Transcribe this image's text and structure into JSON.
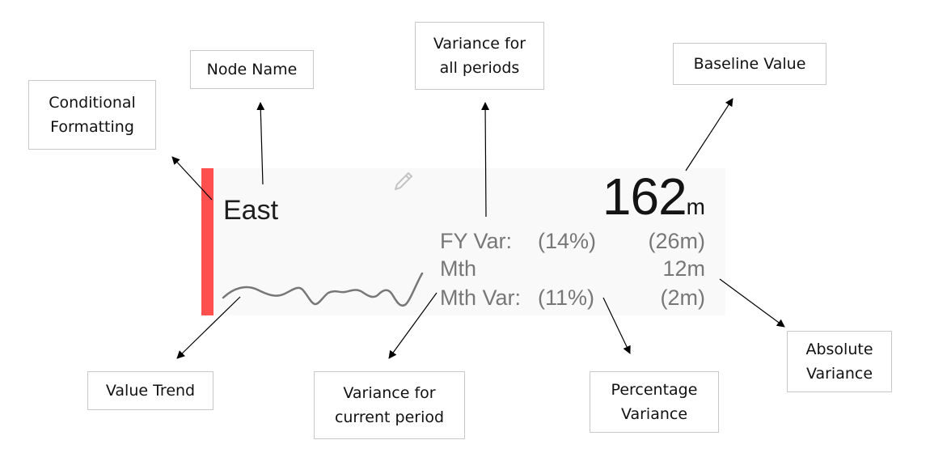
{
  "card": {
    "node_name": "East",
    "baseline_value": "162",
    "baseline_unit": "m",
    "conditional_color": "#ff4f4f",
    "rows": [
      {
        "label": "FY Var:",
        "percent": "(14%)",
        "absolute": "(26m)"
      },
      {
        "label": "Mth",
        "percent": "",
        "absolute": "12m"
      },
      {
        "label": "Mth Var:",
        "percent": "(11%)",
        "absolute": "(2m)"
      }
    ],
    "icons": {
      "edit": "pencil-icon"
    }
  },
  "callouts": {
    "node_name": "Node Name",
    "conditional_formatting": "Conditional\nFormatting",
    "variance_all_periods": "Variance for\nall periods",
    "baseline_value": "Baseline Value",
    "value_trend": "Value Trend",
    "variance_current_period": "Variance for\ncurrent period",
    "percentage_variance": "Percentage\nVariance",
    "absolute_variance": "Absolute\nVariance"
  }
}
